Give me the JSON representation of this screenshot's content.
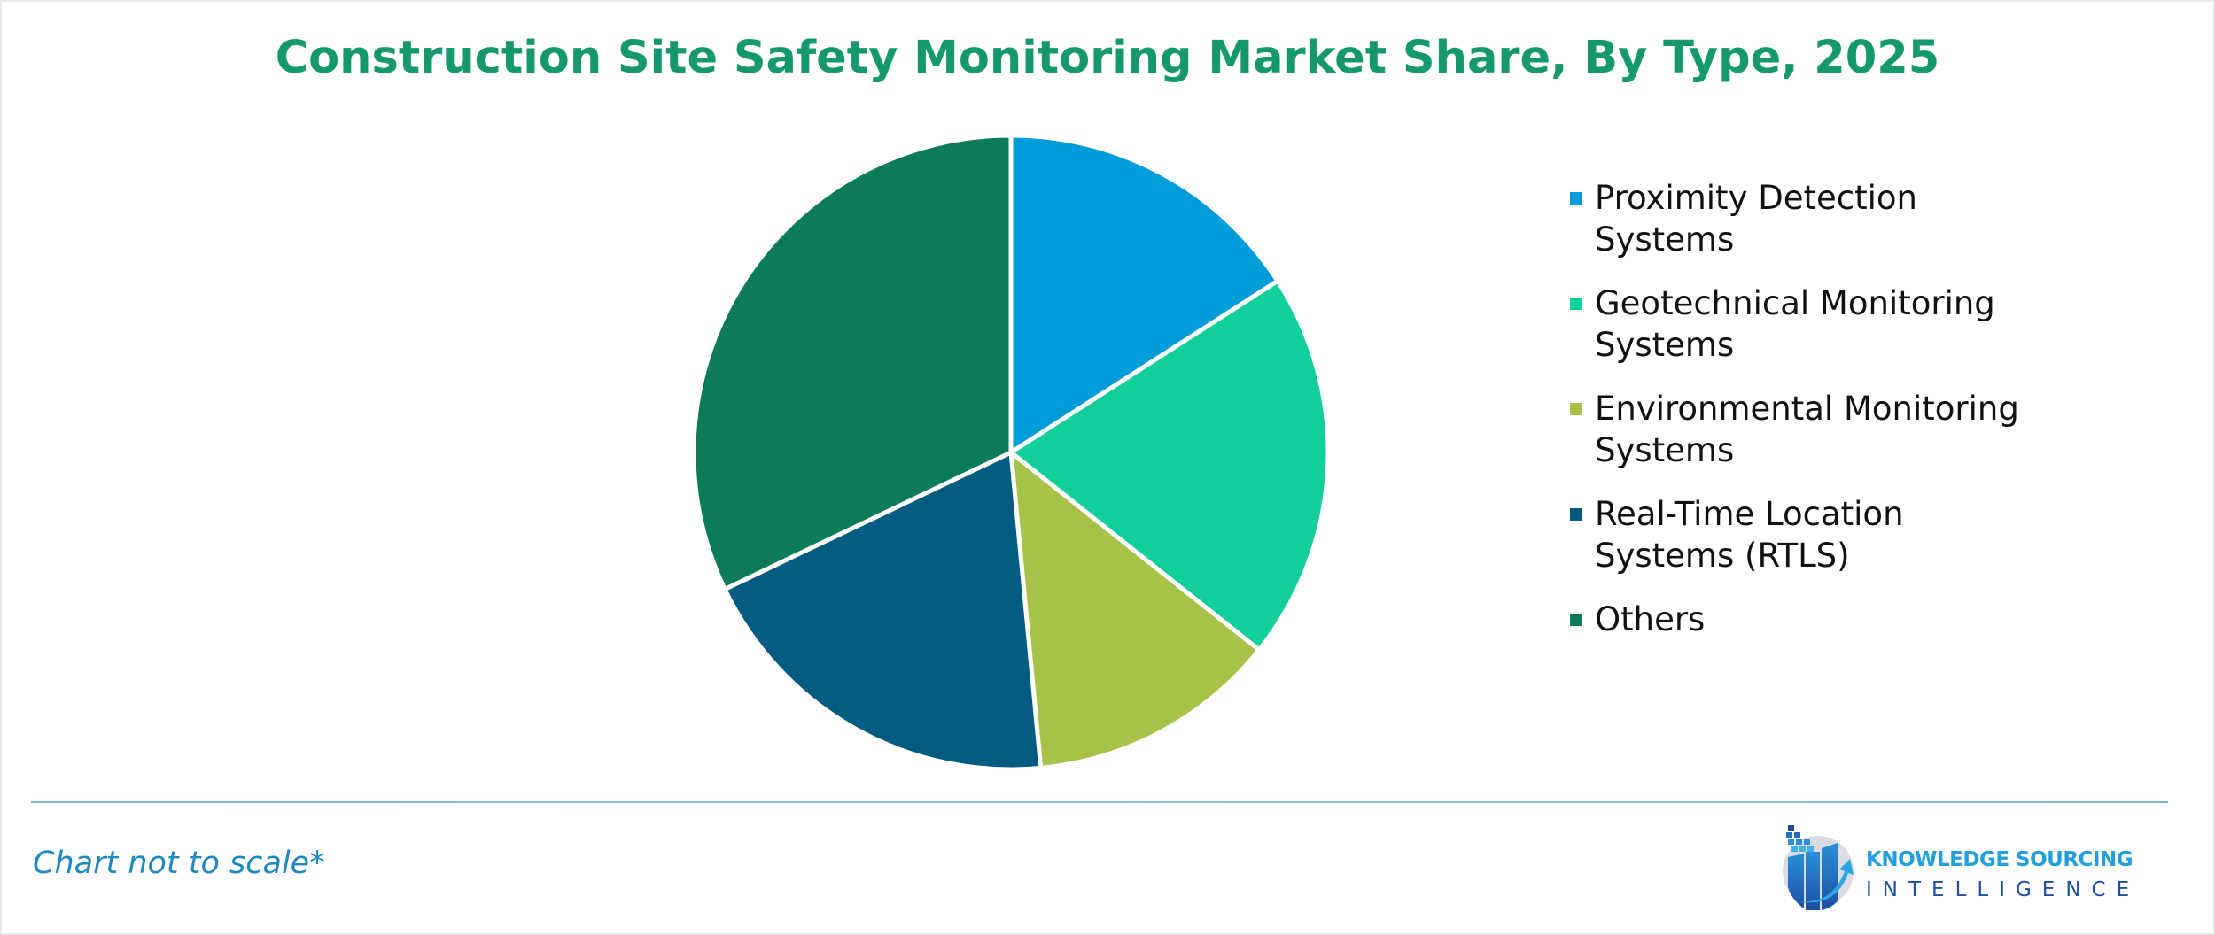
{
  "title": "Construction Site Safety Monitoring Market Share, By Type, 2025",
  "legend": {
    "items": [
      {
        "line1": "Proximity Detection",
        "line2": "Systems",
        "color": "#029cd8"
      },
      {
        "line1": "Geotechnical Monitoring",
        "line2": "Systems",
        "color": "#11cf9a"
      },
      {
        "line1": "Environmental Monitoring",
        "line2": "Systems",
        "color": "#a6c248"
      },
      {
        "line1": "Real-Time Location",
        "line2": "Systems (RTLS)",
        "color": "#025b80"
      },
      {
        "line1": "Others",
        "line2": "",
        "color": "#0b7b5a"
      }
    ]
  },
  "footnote": "Chart not to scale*",
  "logo": {
    "line1": "KNOWLEDGE SOURCING",
    "line2": "INTELLIGENCE",
    "icon": "bar-chart-arrow-globe-icon"
  },
  "chart_data": {
    "type": "pie",
    "title": "Construction Site Safety Monitoring Market Share, By Type, 2025",
    "categories": [
      "Proximity Detection Systems",
      "Geotechnical Monitoring Systems",
      "Environmental Monitoring Systems",
      "Real-Time Location Systems (RTLS)",
      "Others"
    ],
    "values": [
      15.9,
      19.8,
      12.8,
      19.4,
      32.1
    ],
    "unit": "% (estimated from slice angles)",
    "colors": [
      "#029cd8",
      "#11cf9a",
      "#a6c248",
      "#025b80",
      "#0b7b5a"
    ],
    "start_angle": "12 o'clock, clockwise",
    "legend_position": "right",
    "note": "Chart not to scale*"
  }
}
